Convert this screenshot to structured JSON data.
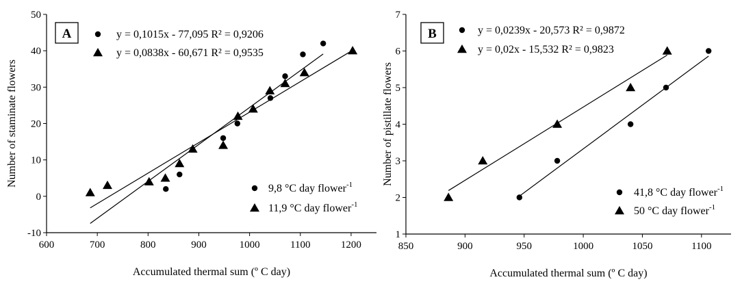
{
  "chart_data": [
    {
      "type": "scatter",
      "panel_label": "A",
      "xlabel": "Accumulated thermal sum (º C day)",
      "ylabel": "Number of staminate flowers",
      "xlim": [
        600,
        1250
      ],
      "ylim": [
        -10,
        50
      ],
      "xticks": [
        "600",
        "700",
        "800",
        "900",
        "1000",
        "1100",
        "1200"
      ],
      "yticks": [
        "-10",
        "0",
        "10",
        "20",
        "30",
        "40",
        "50"
      ],
      "xtick_values": [
        600,
        700,
        800,
        900,
        1000,
        1100,
        1200
      ],
      "ytick_values": [
        -10,
        0,
        10,
        20,
        30,
        40,
        50
      ],
      "grid": false,
      "legend_position": "bottom-right",
      "series": [
        {
          "name": "9,8 °C day flower",
          "marker": "circle",
          "equation": "y = 0,1015x - 77,095 R² = 0,9206",
          "x": [
            835,
            862,
            948,
            976,
            1041,
            1070,
            1105,
            1145
          ],
          "y": [
            2,
            6,
            16,
            20,
            27,
            33,
            39,
            42
          ],
          "trendline": {
            "slope": 0.1015,
            "intercept": -77.095,
            "x_range": [
              686,
              1145
            ]
          }
        },
        {
          "name": "11,9 °C day flower",
          "marker": "triangle",
          "equation": "y = 0,0838x - 60,671 R² = 0,9535",
          "x": [
            686,
            720,
            802,
            834,
            862,
            888,
            948,
            977,
            1007,
            1040,
            1070,
            1108,
            1203
          ],
          "y": [
            1,
            3,
            4,
            5,
            9,
            13,
            14,
            22,
            24,
            29,
            31,
            34,
            40
          ],
          "trendline": {
            "slope": 0.0838,
            "intercept": -60.671,
            "x_range": [
              686,
              1203
            ]
          }
        }
      ],
      "legend_unit_superscript": "-1"
    },
    {
      "type": "scatter",
      "panel_label": "B",
      "xlabel": "Accumulated thermal sum (º C day)",
      "ylabel": "Number of pistillate flowers",
      "xlim": [
        850,
        1125
      ],
      "ylim": [
        1,
        7
      ],
      "xticks": [
        "850",
        "900",
        "950",
        "1000",
        "1050",
        "1100"
      ],
      "yticks": [
        "1",
        "2",
        "3",
        "4",
        "5",
        "6",
        "7"
      ],
      "xtick_values": [
        850,
        900,
        950,
        1000,
        1050,
        1100
      ],
      "ytick_values": [
        1,
        2,
        3,
        4,
        5,
        6,
        7
      ],
      "grid": false,
      "legend_position": "bottom-right",
      "series": [
        {
          "name": "41,8 °C day flower",
          "marker": "circle",
          "equation": "y = 0,0239x - 20,573 R² = 0,9872",
          "x": [
            946,
            978,
            1040,
            1070,
            1106
          ],
          "y": [
            2,
            3,
            4,
            5,
            6
          ],
          "trendline": {
            "slope": 0.0239,
            "intercept": -20.573,
            "x_range": [
              946,
              1106
            ]
          }
        },
        {
          "name": "50 °C day flower",
          "marker": "triangle",
          "equation": "y = 0,02x - 15,532 R² = 0,9823",
          "x": [
            886,
            915,
            978,
            1040,
            1071
          ],
          "y": [
            2,
            3,
            4,
            5,
            6
          ],
          "trendline": {
            "slope": 0.02,
            "intercept": -15.532,
            "x_range": [
              886,
              1071
            ]
          }
        }
      ],
      "legend_unit_superscript": "-1"
    }
  ]
}
